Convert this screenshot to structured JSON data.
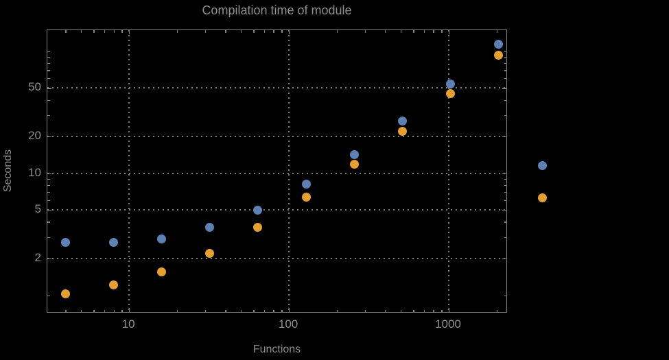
{
  "style": {
    "background": "#000000",
    "text_color": "#8f8f8f",
    "frame_color": "#828282",
    "grid_color": "#7e7e7e"
  },
  "chart_data": {
    "type": "scatter",
    "title": "Compilation time of module",
    "xlabel": "Functions",
    "ylabel": "Seconds",
    "x_scale": "log",
    "y_scale": "log",
    "x": [
      4,
      8,
      16,
      32,
      64,
      128,
      256,
      512,
      1024,
      2048
    ],
    "series": [
      {
        "name": "series-blue",
        "color": "#5e81b5",
        "values": [
          2.7,
          2.7,
          2.9,
          3.6,
          5.0,
          8.2,
          14.3,
          26.8,
          54,
          114
        ]
      },
      {
        "name": "series-orange",
        "color": "#e5a030",
        "values": [
          1.03,
          1.21,
          1.55,
          2.2,
          3.6,
          6.4,
          11.8,
          22,
          45,
          93
        ]
      }
    ],
    "x_range": [
      3.08,
      2340
    ],
    "y_range": [
      0.71,
      149
    ],
    "x_ticks_labeled": [
      10,
      100,
      1000
    ],
    "y_ticks_labeled": [
      2,
      5,
      10,
      20,
      50
    ],
    "x_tick_label_texts": [
      "10",
      "100",
      "1000"
    ],
    "y_tick_label_texts": [
      "2",
      "5",
      "10",
      "20",
      "50"
    ],
    "grid_x": [
      10,
      100,
      1000
    ],
    "grid_y": [
      2,
      5,
      10,
      20,
      50
    ],
    "grid_style": "dotted",
    "legend_position": "right-outside",
    "legend_items": [
      {
        "marker_color": "#5e81b5",
        "label": ""
      },
      {
        "marker_color": "#e5a030",
        "label": ""
      }
    ]
  }
}
